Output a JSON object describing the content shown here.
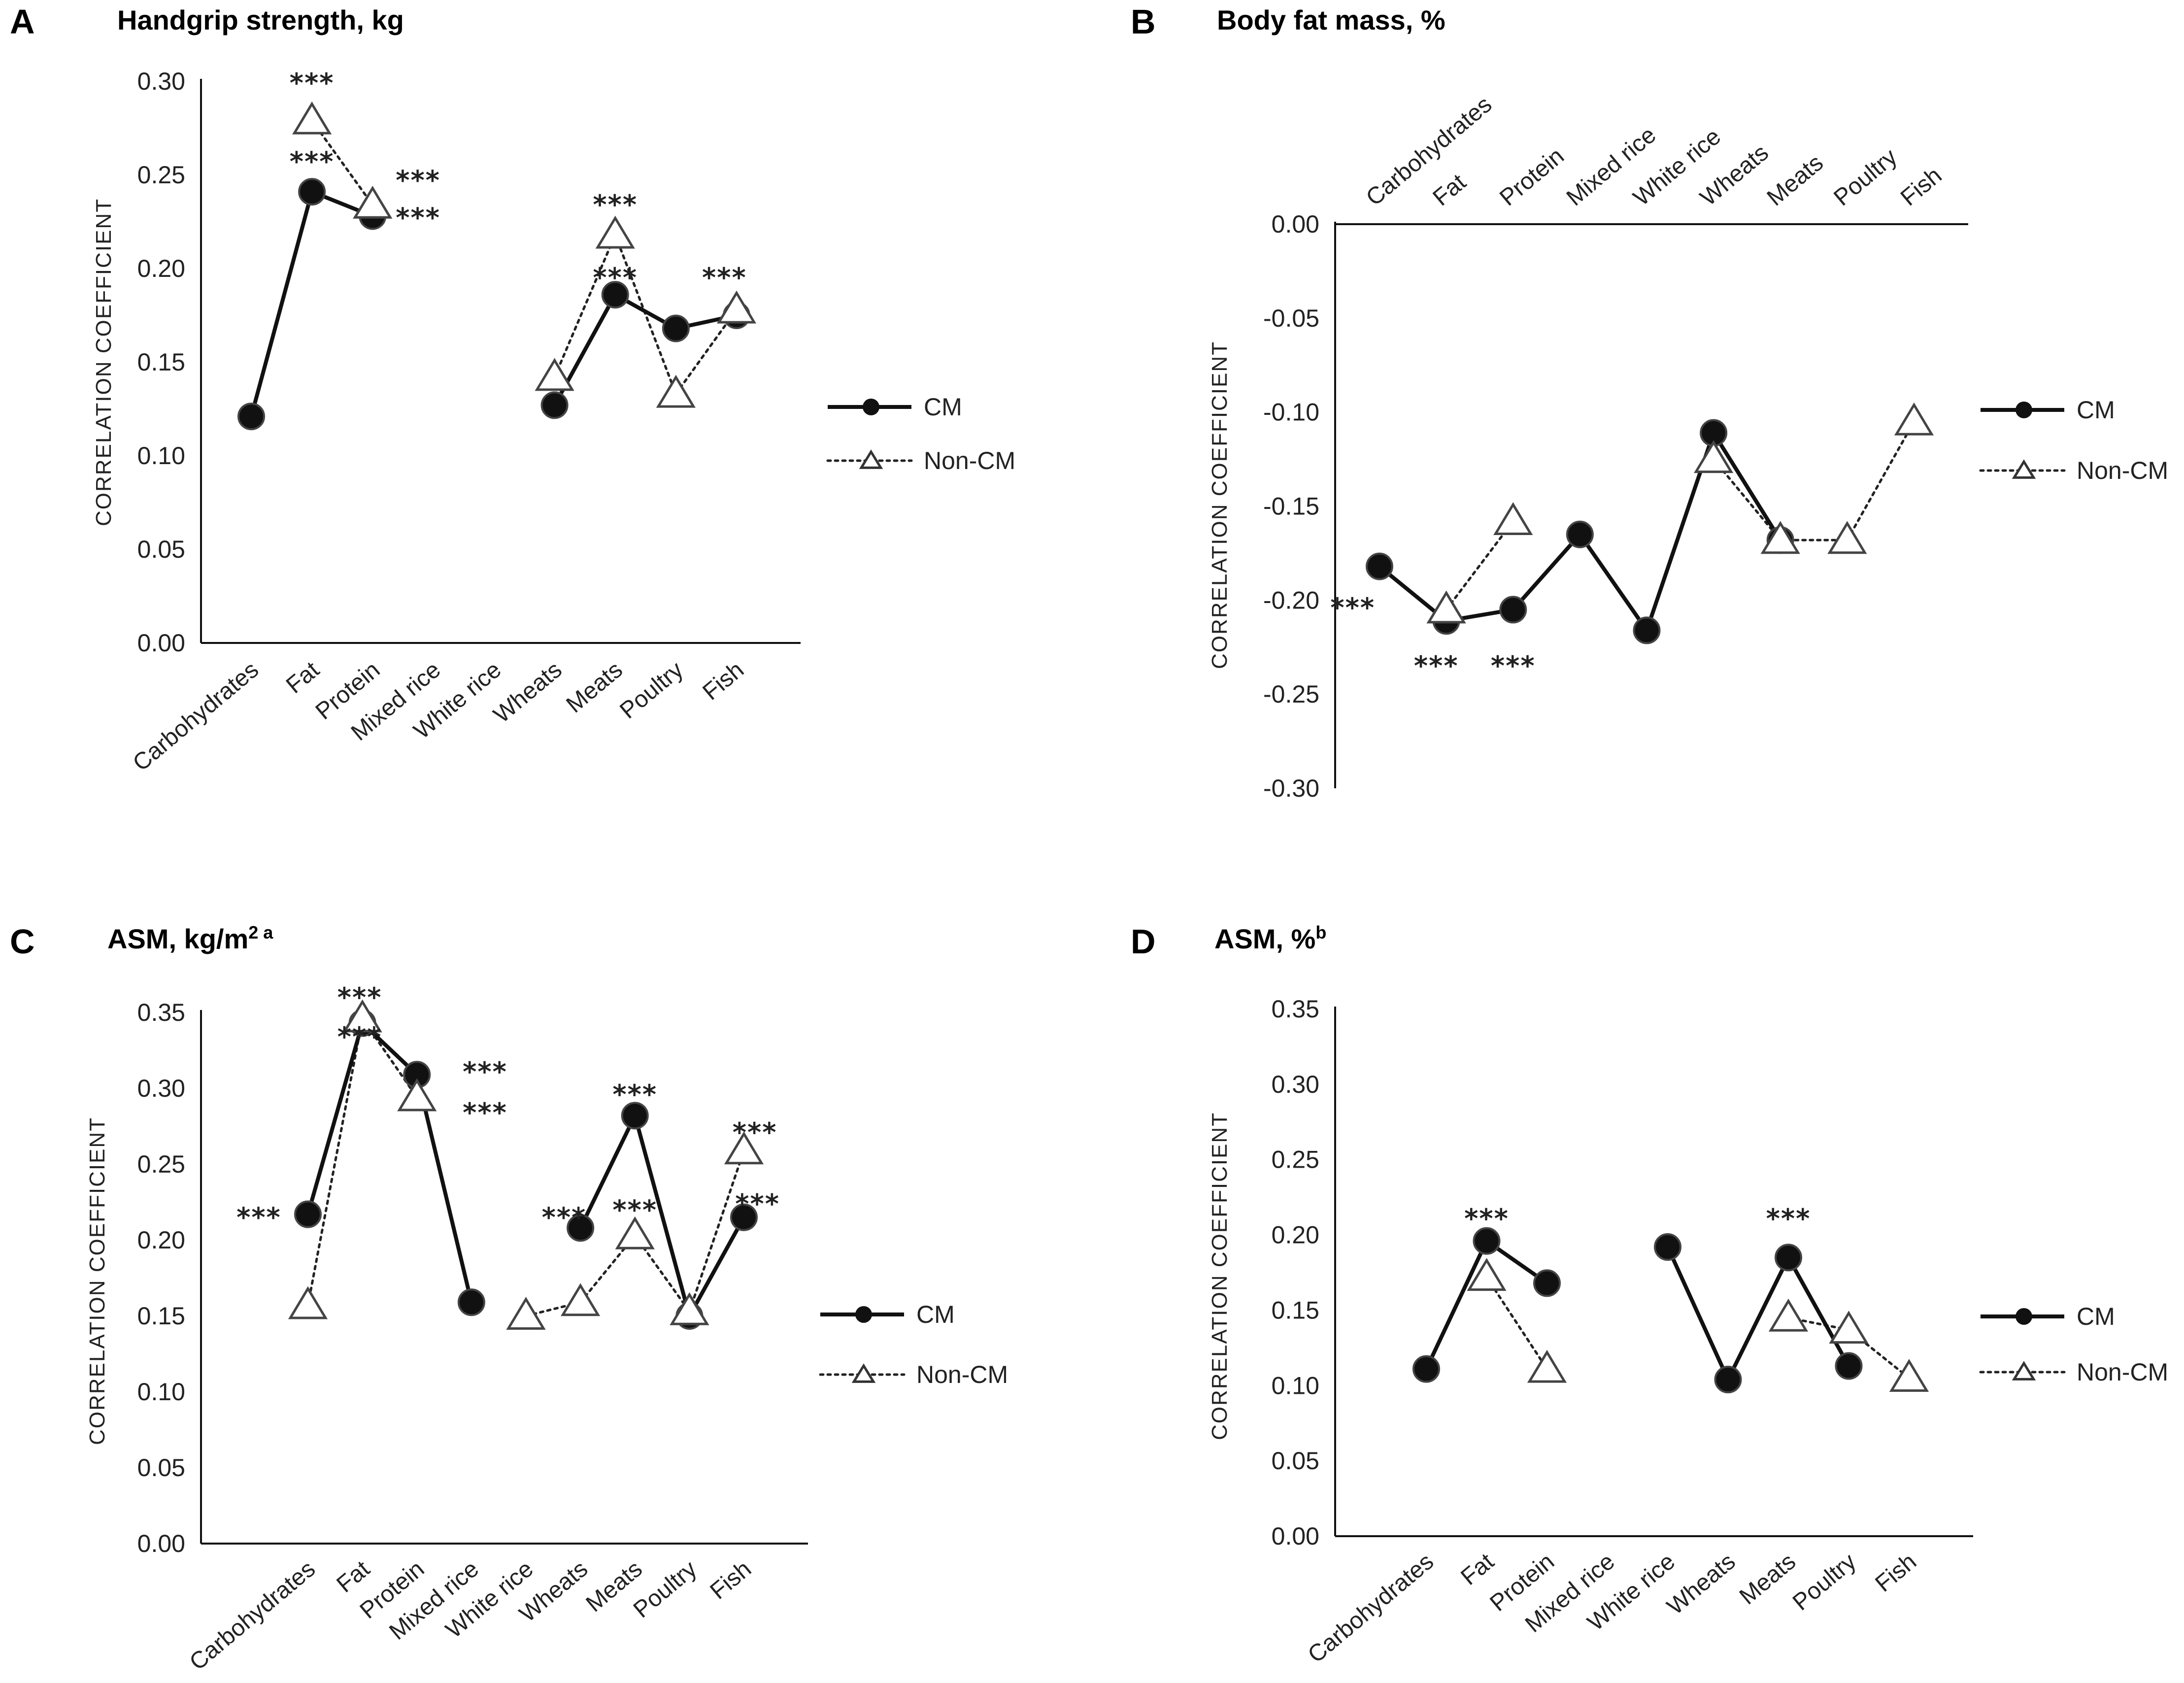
{
  "chart_data": [
    {
      "type": "line",
      "letter": "A",
      "title": "Handgrip strength, kg",
      "ylabel": "CORRELATION COEFFICIENT",
      "ylim": [
        0,
        0.3
      ],
      "yticks": [
        "0.00",
        "0.05",
        "0.10",
        "0.15",
        "0.20",
        "0.25",
        "0.30"
      ],
      "categories": [
        "Carbohydrates",
        "Fat",
        "Protein",
        "Mixed rice",
        "White rice",
        "Wheats",
        "Meats",
        "Poultry",
        "Fish"
      ],
      "series": [
        {
          "name": "CM",
          "values": [
            0.121,
            0.241,
            0.228,
            null,
            null,
            0.127,
            0.186,
            0.168,
            0.175
          ]
        },
        {
          "name": "Non-CM",
          "values": [
            null,
            0.279,
            0.234,
            null,
            null,
            0.142,
            0.218,
            0.133,
            0.178
          ]
        }
      ],
      "annotations": [
        {
          "text": "***",
          "cat": 1,
          "value": 0.3
        },
        {
          "text": "***",
          "cat": 1,
          "value": 0.258
        },
        {
          "text": "***",
          "cat": 2.75,
          "value": 0.248
        },
        {
          "text": "***",
          "cat": 2.75,
          "value": 0.228
        },
        {
          "text": "***",
          "cat": 6,
          "value": 0.235
        },
        {
          "text": "***",
          "cat": 6,
          "value": 0.196
        },
        {
          "text": "***",
          "cat": 7.8,
          "value": 0.196
        }
      ],
      "legend": [
        "CM",
        "Non-CM"
      ]
    },
    {
      "type": "line",
      "letter": "B",
      "title": "Body fat mass,  %",
      "ylabel": "CORRELATION COEFFICIENT",
      "ylim": [
        -0.3,
        0
      ],
      "yticks": [
        "-0.30",
        "-0.25",
        "-0.20",
        "-0.15",
        "-0.10",
        "-0.05",
        "0.00"
      ],
      "categories": [
        "Carbohydrates",
        "Fat",
        "Protein",
        "Mixed rice",
        "White rice",
        "Wheats",
        "Meats",
        "Poultry",
        "Fish"
      ],
      "series": [
        {
          "name": "CM",
          "values": [
            -0.182,
            -0.211,
            -0.205,
            -0.165,
            -0.216,
            -0.111,
            -0.168,
            null,
            null
          ]
        },
        {
          "name": "Non-CM",
          "values": [
            null,
            -0.205,
            -0.158,
            null,
            null,
            -0.125,
            -0.168,
            -0.168,
            -0.105
          ]
        }
      ],
      "annotations": [
        {
          "text": "***",
          "cat": -0.4,
          "value": -0.203
        },
        {
          "text": "***",
          "cat": 0.85,
          "value": -0.234
        },
        {
          "text": "***",
          "cat": 2.0,
          "value": -0.234
        }
      ],
      "legend": [
        "CM",
        "Non-CM"
      ]
    },
    {
      "type": "line",
      "letter": "C",
      "title": "ASM, kg/m",
      "title_sup": "2  a",
      "ylabel": "CORRELATION COEFFICIENT",
      "ylim": [
        0,
        0.35
      ],
      "yticks": [
        "0.00",
        "0.05",
        "0.10",
        "0.15",
        "0.20",
        "0.25",
        "0.30",
        "0.35"
      ],
      "categories": [
        "Carbohydrates",
        "Fat",
        "Protein",
        "Mixed rice",
        "White rice",
        "Wheats",
        "Meats",
        "Poultry",
        "Fish"
      ],
      "series": [
        {
          "name": "CM",
          "values": [
            0.217,
            0.343,
            0.309,
            0.159,
            null,
            0.208,
            0.282,
            0.15,
            0.215
          ]
        },
        {
          "name": "Non-CM",
          "values": [
            0.157,
            0.346,
            0.294,
            null,
            0.15,
            0.159,
            0.203,
            0.153,
            0.259
          ]
        }
      ],
      "annotations": [
        {
          "text": "***",
          "cat": -0.9,
          "value": 0.216
        },
        {
          "text": "***",
          "cat": 0.95,
          "value": 0.361
        },
        {
          "text": "***",
          "cat": 0.95,
          "value": 0.335
        },
        {
          "text": "***",
          "cat": 3.25,
          "value": 0.312
        },
        {
          "text": "***",
          "cat": 3.25,
          "value": 0.285
        },
        {
          "text": "***",
          "cat": 4.7,
          "value": 0.216
        },
        {
          "text": "***",
          "cat": 6.0,
          "value": 0.297
        },
        {
          "text": "***",
          "cat": 6.0,
          "value": 0.221
        },
        {
          "text": "***",
          "cat": 8.2,
          "value": 0.272
        },
        {
          "text": "***",
          "cat": 8.25,
          "value": 0.225
        }
      ],
      "legend": [
        "CM",
        "Non-CM"
      ]
    },
    {
      "type": "line",
      "letter": "D",
      "title": "ASM, %",
      "title_sup": "b",
      "ylabel": "CORRELATION COEFFICIENT",
      "ylim": [
        0,
        0.35
      ],
      "yticks": [
        "0.00",
        "0.05",
        "0.10",
        "0.15",
        "0.20",
        "0.25",
        "0.30",
        "0.35"
      ],
      "categories": [
        "Carbohydrates",
        "Fat",
        "Protein",
        "Mixed rice",
        "White rice",
        "Wheats",
        "Meats",
        "Poultry",
        "Fish"
      ],
      "series": [
        {
          "name": "CM",
          "values": [
            0.111,
            0.196,
            0.168,
            null,
            0.192,
            0.104,
            0.185,
            0.113,
            null
          ]
        },
        {
          "name": "Non-CM",
          "values": [
            null,
            0.172,
            0.111,
            null,
            null,
            null,
            0.145,
            0.137,
            0.105
          ]
        }
      ],
      "annotations": [
        {
          "text": "***",
          "cat": 1.0,
          "value": 0.212
        },
        {
          "text": "***",
          "cat": 6.0,
          "value": 0.212
        }
      ],
      "legend": [
        "CM",
        "Non-CM"
      ]
    }
  ]
}
